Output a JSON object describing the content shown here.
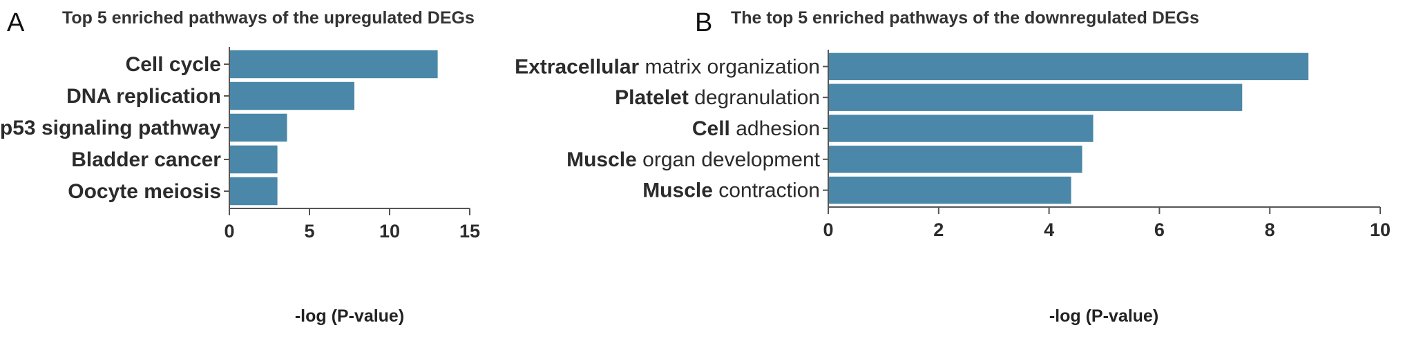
{
  "panels": [
    {
      "letter": "A",
      "title": "Top 5 enriched pathways of the upregulated DEGs",
      "xlabel": "-log (P-value)"
    },
    {
      "letter": "B",
      "title": "The top 5 enriched pathways of the downregulated DEGs",
      "xlabel": "-log (P-value)"
    }
  ],
  "chart_data": [
    {
      "type": "bar",
      "orientation": "horizontal",
      "title": "Top 5 enriched pathways of the upregulated DEGs",
      "xlabel": "-log (P-value)",
      "ylabel": "",
      "categories": [
        "Cell cycle",
        "DNA replication",
        "p53 signaling pathway",
        "Bladder cancer",
        "Oocyte meiosis"
      ],
      "values": [
        13.0,
        7.8,
        3.6,
        3.0,
        3.0
      ],
      "xlim": [
        0,
        15
      ],
      "xticks": [
        0,
        5,
        10,
        15
      ],
      "bar_color": "#4a87a8",
      "grid": false
    },
    {
      "type": "bar",
      "orientation": "horizontal",
      "title": "The top 5 enriched pathways of the downregulated DEGs",
      "xlabel": "-log (P-value)",
      "ylabel": "",
      "categories": [
        "Extracellular matrix organization",
        "Platelet degranulation",
        "Cell adhesion",
        "Muscle organ development",
        "Muscle contraction"
      ],
      "values": [
        8.7,
        7.5,
        4.8,
        4.6,
        4.4
      ],
      "xlim": [
        0,
        10
      ],
      "xticks": [
        0,
        2,
        4,
        6,
        8,
        10
      ],
      "bar_color": "#4a87a8",
      "grid": false
    }
  ]
}
